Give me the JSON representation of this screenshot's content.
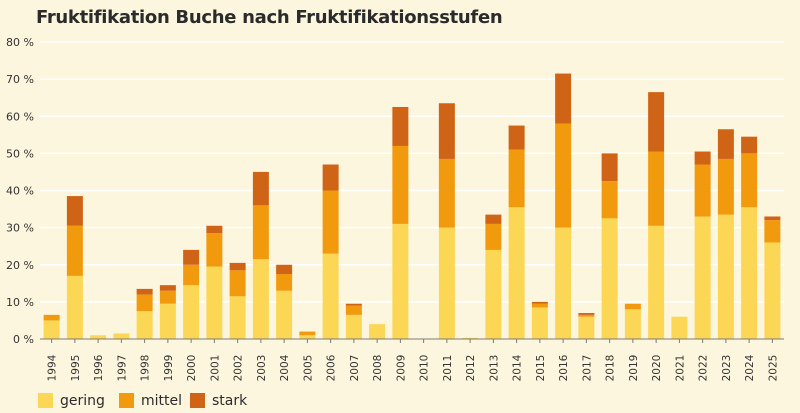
{
  "chart_data": {
    "type": "bar",
    "stacked": true,
    "title": "Fruktifikation Buche nach Fruktifikationsstufen",
    "ylim": [
      0,
      80
    ],
    "yticks": [
      0,
      10,
      20,
      30,
      40,
      50,
      60,
      70,
      80
    ],
    "ytick_labels": [
      "0 %",
      "10 %",
      "20 %",
      "30 %",
      "40 %",
      "50 %",
      "60 %",
      "70 %",
      "80 %"
    ],
    "grid": true,
    "legend": "bottom-left",
    "categories": [
      "1994",
      "1995",
      "1996",
      "1997",
      "1998",
      "1999",
      "2000",
      "2001",
      "2002",
      "2003",
      "2004",
      "2005",
      "2006",
      "2007",
      "2008",
      "2009",
      "2010",
      "2011",
      "2012",
      "2013",
      "2014",
      "2015",
      "2016",
      "2017",
      "2018",
      "2019",
      "2020",
      "2021",
      "2022",
      "2023",
      "2024",
      "2025"
    ],
    "series": [
      {
        "name": "gering",
        "color": "#fcd655",
        "values": [
          5,
          17,
          1,
          1.5,
          7.5,
          9.5,
          14.5,
          19.5,
          11.5,
          21.5,
          13,
          1,
          23,
          6.5,
          4,
          31,
          0,
          30,
          0.3,
          24,
          35.5,
          8.5,
          30,
          6,
          32.5,
          8,
          30.5,
          6,
          33,
          33.5,
          35.5,
          26
        ]
      },
      {
        "name": "mittel",
        "color": "#f29a0e",
        "values": [
          1.5,
          13.5,
          0,
          0,
          4.5,
          3.5,
          5.5,
          9,
          7,
          14.5,
          4.5,
          1,
          17,
          2.5,
          0,
          21,
          0,
          18.5,
          0,
          7,
          15.5,
          1,
          28,
          0.5,
          10,
          1.5,
          20,
          0,
          14,
          15,
          14.5,
          6
        ]
      },
      {
        "name": "stark",
        "color": "#cf6417",
        "values": [
          0,
          8,
          0,
          0,
          1.5,
          1.5,
          4,
          2,
          2,
          9,
          2.5,
          0,
          7,
          0.5,
          0,
          10.5,
          0,
          15,
          0,
          2.5,
          6.5,
          0.5,
          13.5,
          0.5,
          7.5,
          0,
          16,
          0,
          3.5,
          8,
          4.5,
          1
        ]
      }
    ]
  },
  "legend": {
    "items": [
      {
        "label": "gering",
        "color": "#fcd655"
      },
      {
        "label": "mittel",
        "color": "#f29a0e"
      },
      {
        "label": "stark",
        "color": "#cf6417"
      }
    ]
  },
  "colors": {
    "background": "#fdf6de",
    "grid": "#ffffff",
    "axis": "#7a7a7a"
  }
}
